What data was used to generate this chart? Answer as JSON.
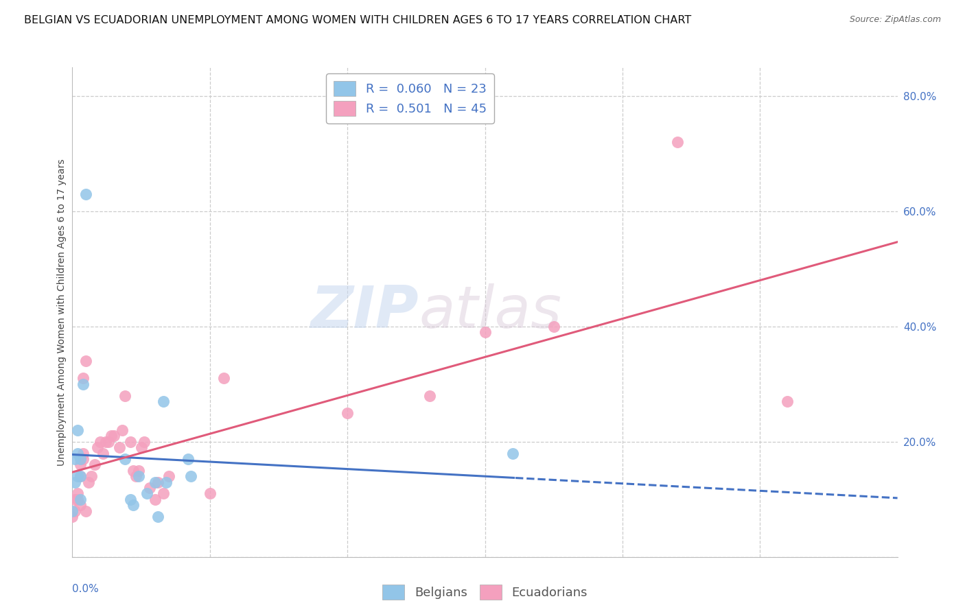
{
  "title": "BELGIAN VS ECUADORIAN UNEMPLOYMENT AMONG WOMEN WITH CHILDREN AGES 6 TO 17 YEARS CORRELATION CHART",
  "source": "Source: ZipAtlas.com",
  "ylabel": "Unemployment Among Women with Children Ages 6 to 17 years",
  "belgian_R": 0.06,
  "belgian_N": 23,
  "ecuadorian_R": 0.501,
  "ecuadorian_N": 45,
  "belgian_color": "#92c5e8",
  "ecuadorian_color": "#f4a0be",
  "regression_belgian_color": "#4472c4",
  "regression_ecuadorian_color": "#e05a7a",
  "watermark_zip": "ZIP",
  "watermark_atlas": "atlas",
  "belgians_x": [
    0.0,
    0.001,
    0.001,
    0.002,
    0.002,
    0.002,
    0.003,
    0.003,
    0.003,
    0.004,
    0.005,
    0.019,
    0.021,
    0.022,
    0.024,
    0.027,
    0.03,
    0.031,
    0.033,
    0.034,
    0.042,
    0.043,
    0.16
  ],
  "belgians_y": [
    0.08,
    0.13,
    0.17,
    0.14,
    0.18,
    0.22,
    0.17,
    0.14,
    0.1,
    0.3,
    0.63,
    0.17,
    0.1,
    0.09,
    0.14,
    0.11,
    0.13,
    0.07,
    0.27,
    0.13,
    0.17,
    0.14,
    0.18
  ],
  "ecuadorians_x": [
    0.0,
    0.001,
    0.001,
    0.002,
    0.002,
    0.003,
    0.003,
    0.003,
    0.004,
    0.004,
    0.004,
    0.005,
    0.005,
    0.006,
    0.007,
    0.008,
    0.009,
    0.01,
    0.011,
    0.012,
    0.013,
    0.014,
    0.015,
    0.017,
    0.018,
    0.019,
    0.021,
    0.022,
    0.023,
    0.024,
    0.025,
    0.026,
    0.028,
    0.03,
    0.031,
    0.033,
    0.035,
    0.05,
    0.055,
    0.1,
    0.13,
    0.15,
    0.175,
    0.22,
    0.26
  ],
  "ecuadorians_y": [
    0.07,
    0.08,
    0.1,
    0.1,
    0.11,
    0.09,
    0.14,
    0.16,
    0.17,
    0.18,
    0.31,
    0.34,
    0.08,
    0.13,
    0.14,
    0.16,
    0.19,
    0.2,
    0.18,
    0.2,
    0.2,
    0.21,
    0.21,
    0.19,
    0.22,
    0.28,
    0.2,
    0.15,
    0.14,
    0.15,
    0.19,
    0.2,
    0.12,
    0.1,
    0.13,
    0.11,
    0.14,
    0.11,
    0.31,
    0.25,
    0.28,
    0.39,
    0.4,
    0.72,
    0.27
  ],
  "xlim": [
    0.0,
    0.3
  ],
  "ylim": [
    0.0,
    0.85
  ],
  "right_yticks": [
    0.0,
    0.2,
    0.4,
    0.6,
    0.8
  ],
  "right_yticklabels": [
    "",
    "20.0%",
    "40.0%",
    "60.0%",
    "80.0%"
  ],
  "xtick_lines": [
    0.05,
    0.1,
    0.15,
    0.2,
    0.25
  ],
  "gridline_color": "#cccccc",
  "background_color": "#ffffff",
  "title_fontsize": 11.5,
  "axis_label_fontsize": 10,
  "tick_fontsize": 11,
  "legend_fontsize": 13
}
